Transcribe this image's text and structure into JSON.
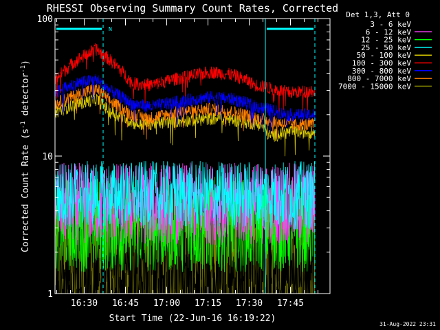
{
  "chart_data": {
    "type": "line",
    "title": "RHESSI Observing Summary Count Rates, Corrected",
    "xlabel": "Start Time (22-Jun-16 16:19:22)",
    "ylabel_main": "Corrected Count Rate (s",
    "ylabel_sup1": "-1",
    "ylabel_mid": " detector",
    "ylabel_sup2": "-1",
    "ylabel_end": ")",
    "yscale": "log",
    "ylim": [
      1,
      100
    ],
    "xlim_minutes": [
      0,
      100
    ],
    "xticks": [
      {
        "label": "16:30",
        "min": 10.63
      },
      {
        "label": "16:45",
        "min": 25.63
      },
      {
        "label": "17:00",
        "min": 40.63
      },
      {
        "label": "17:15",
        "min": 55.63
      },
      {
        "label": "17:30",
        "min": 70.63
      },
      {
        "label": "17:45",
        "min": 85.63
      }
    ],
    "yticks": [
      {
        "label": "1",
        "value": 1
      },
      {
        "label": "10",
        "value": 10
      },
      {
        "label": "100",
        "value": 100
      }
    ],
    "legend_header": "Det 1,3, Att 0",
    "legend_position": "outside-right",
    "timestamp": "31-Aug-2022 23:31",
    "night_marker": "N",
    "night_periods": [
      {
        "start_min": 0,
        "end_min": 17.5
      },
      {
        "start_min": 76.5,
        "end_min": 94.5
      }
    ],
    "data_end_min": 94.5,
    "series": [
      {
        "name": "3 - 6 keV",
        "color": "#000000",
        "kind": "noise",
        "level": 1.5,
        "spread": 0.35
      },
      {
        "name": "6 - 12 keV",
        "color": "#ff40ff",
        "kind": "noise",
        "level": 4.5,
        "spread": 0.3
      },
      {
        "name": "12 - 25 keV",
        "color": "#00ff00",
        "kind": "noise",
        "level": 3.2,
        "spread": 0.35
      },
      {
        "name": "25 - 50 keV",
        "color": "#00ffff",
        "kind": "noise",
        "level": 5.2,
        "spread": 0.25
      },
      {
        "name": "50 - 100 keV",
        "color": "#d8c800",
        "kind": "profile",
        "profile": [
          [
            0,
            21
          ],
          [
            8,
            24
          ],
          [
            15,
            26
          ],
          [
            20,
            21
          ],
          [
            30,
            17
          ],
          [
            45,
            18
          ],
          [
            60,
            19
          ],
          [
            75,
            17
          ],
          [
            78,
            14
          ],
          [
            85,
            15
          ],
          [
            94.5,
            15
          ]
        ]
      },
      {
        "name": "100 - 300 keV",
        "color": "#ff0000",
        "kind": "profile",
        "profile": [
          [
            0,
            36
          ],
          [
            8,
            50
          ],
          [
            15,
            60
          ],
          [
            20,
            50
          ],
          [
            28,
            34
          ],
          [
            35,
            33
          ],
          [
            45,
            37
          ],
          [
            57,
            41
          ],
          [
            65,
            39
          ],
          [
            73,
            33
          ],
          [
            85,
            29
          ],
          [
            94.5,
            30
          ]
        ]
      },
      {
        "name": "300 - 800 keV",
        "color": "#0000ff",
        "kind": "profile",
        "profile": [
          [
            0,
            29
          ],
          [
            8,
            34
          ],
          [
            15,
            36
          ],
          [
            20,
            30
          ],
          [
            28,
            24
          ],
          [
            35,
            23
          ],
          [
            45,
            25
          ],
          [
            57,
            27
          ],
          [
            65,
            26
          ],
          [
            73,
            23
          ],
          [
            85,
            20
          ],
          [
            94.5,
            20
          ]
        ]
      },
      {
        "name": "800 - 7000 keV",
        "color": "#ff8000",
        "kind": "profile",
        "profile": [
          [
            0,
            24
          ],
          [
            8,
            28
          ],
          [
            15,
            31
          ],
          [
            20,
            25
          ],
          [
            28,
            20
          ],
          [
            35,
            19
          ],
          [
            45,
            21
          ],
          [
            57,
            22
          ],
          [
            65,
            21
          ],
          [
            73,
            19
          ],
          [
            85,
            17
          ],
          [
            94.5,
            17
          ]
        ]
      },
      {
        "name": "7000 - 15000 keV",
        "color": "#808000",
        "kind": "noise",
        "level": 1.8,
        "spread": 0.5
      }
    ]
  }
}
